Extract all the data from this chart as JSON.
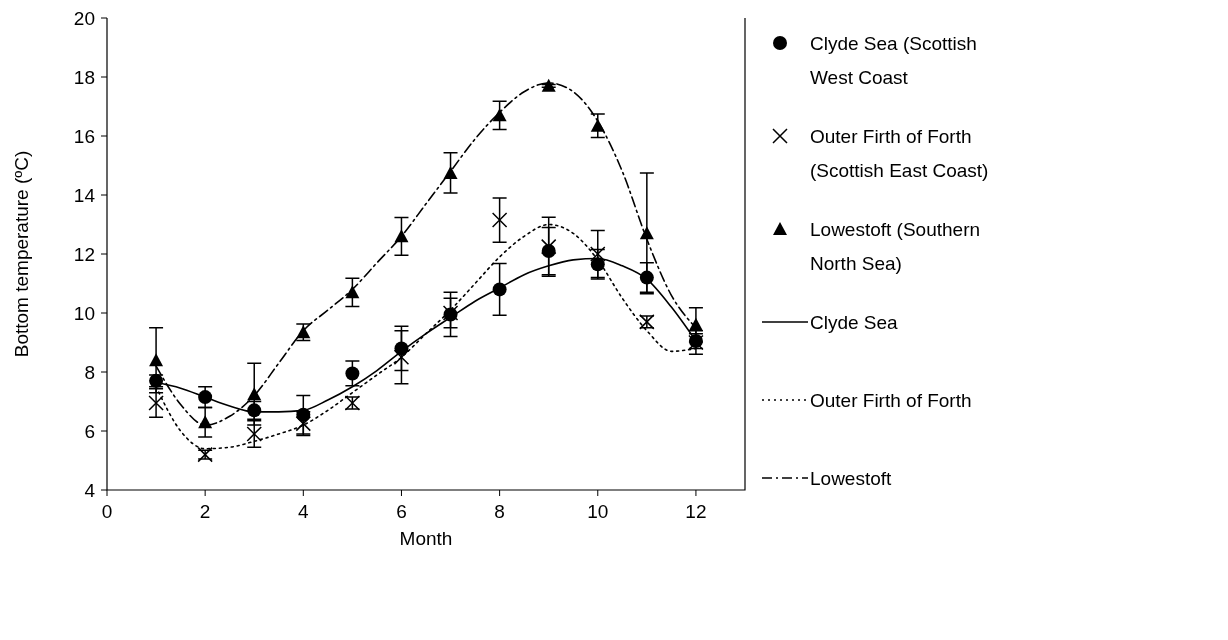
{
  "chart_data": {
    "type": "scatter",
    "xlabel": "Month",
    "ylabel": "Bottom temperature (ºC)",
    "xlim": [
      0,
      13
    ],
    "xticks": [
      0,
      2,
      4,
      6,
      8,
      10,
      12
    ],
    "ylim": [
      4,
      20
    ],
    "yticks": [
      4,
      6,
      8,
      10,
      12,
      14,
      16,
      18,
      20
    ],
    "legend": "right",
    "series": [
      {
        "name": "Clyde Sea (Scottish West Coast",
        "color": "#000000",
        "marker": "circle",
        "x": [
          1,
          2,
          3,
          4,
          5,
          6,
          7,
          8,
          9,
          10,
          11,
          12
        ],
        "values": [
          7.7,
          7.15,
          6.7,
          6.55,
          7.95,
          8.8,
          9.95,
          10.8,
          12.1,
          11.65,
          11.2,
          9.05
        ],
        "errors": [
          0.2,
          0.35,
          0.3,
          0.65,
          0.42,
          0.75,
          0.75,
          0.88,
          0.8,
          0.5,
          0.5,
          0.25
        ]
      },
      {
        "name": "Outer Firth of Forth (Scottish East Coast)",
        "color": "#000000",
        "marker": "cross",
        "x": [
          1,
          2,
          3,
          4,
          5,
          6,
          7,
          8,
          9,
          10,
          11,
          12
        ],
        "values": [
          6.95,
          5.2,
          5.9,
          6.25,
          6.95,
          8.5,
          10.0,
          13.15,
          12.25,
          12.0,
          9.7,
          9.0
        ],
        "errors": [
          0.48,
          0.15,
          0.45,
          0.4,
          0.2,
          0.9,
          0.5,
          0.75,
          1.0,
          0.8,
          0.2,
          0.4
        ]
      },
      {
        "name": "Lowestoft (Southern North Sea)",
        "color": "#000000",
        "marker": "triangle",
        "x": [
          1,
          2,
          3,
          4,
          5,
          6,
          7,
          8,
          9,
          10,
          11,
          12
        ],
        "values": [
          8.4,
          6.3,
          7.25,
          9.35,
          10.7,
          12.6,
          14.75,
          16.7,
          17.7,
          16.35,
          12.7,
          9.6
        ],
        "errors": [
          1.1,
          0.5,
          1.05,
          0.28,
          0.48,
          0.64,
          0.68,
          0.48,
          0.05,
          0.4,
          2.05,
          0.58
        ]
      },
      {
        "type": "line",
        "name": "Clyde Sea",
        "color": "#000000",
        "line_style": "solid",
        "x": [
          1,
          1.5,
          2,
          2.5,
          3,
          3.5,
          4,
          4.5,
          5,
          5.5,
          6,
          6.5,
          7,
          7.5,
          8,
          8.5,
          9,
          9.5,
          10,
          10.5,
          11,
          11.5,
          12
        ],
        "values": [
          7.65,
          7.45,
          7.15,
          6.85,
          6.65,
          6.65,
          6.7,
          7.05,
          7.5,
          8.05,
          8.7,
          9.3,
          9.85,
          10.4,
          10.85,
          11.3,
          11.6,
          11.8,
          11.85,
          11.6,
          11.15,
          10.2,
          9.05
        ]
      },
      {
        "type": "line",
        "name": "Outer Firth of Forth",
        "color": "#000000",
        "line_style": "dotted",
        "x": [
          1,
          1.5,
          2,
          2.5,
          3,
          3.5,
          4,
          4.5,
          5,
          5.5,
          6,
          6.5,
          7,
          7.5,
          8,
          8.5,
          9,
          9.5,
          10,
          10.5,
          11,
          11.5,
          12
        ],
        "values": [
          7.5,
          6.0,
          5.4,
          5.45,
          5.65,
          5.9,
          6.2,
          6.7,
          7.3,
          7.9,
          8.5,
          9.3,
          10.1,
          11.0,
          11.9,
          12.6,
          13.0,
          12.7,
          11.8,
          10.5,
          9.4,
          8.7,
          8.8
        ]
      },
      {
        "type": "line",
        "name": "Lowestoft",
        "color": "#000000",
        "line_style": "dashed",
        "x": [
          1,
          1.5,
          2,
          2.5,
          3,
          3.5,
          4,
          4.5,
          5,
          5.5,
          6,
          6.5,
          7,
          7.5,
          8,
          8.5,
          9,
          9.5,
          10,
          10.5,
          11,
          11.5,
          12
        ],
        "values": [
          8.2,
          6.9,
          6.2,
          6.5,
          7.2,
          8.3,
          9.4,
          10.1,
          10.8,
          11.7,
          12.6,
          13.7,
          14.8,
          15.9,
          16.8,
          17.5,
          17.8,
          17.5,
          16.5,
          14.8,
          12.5,
          10.6,
          9.5
        ]
      }
    ]
  }
}
